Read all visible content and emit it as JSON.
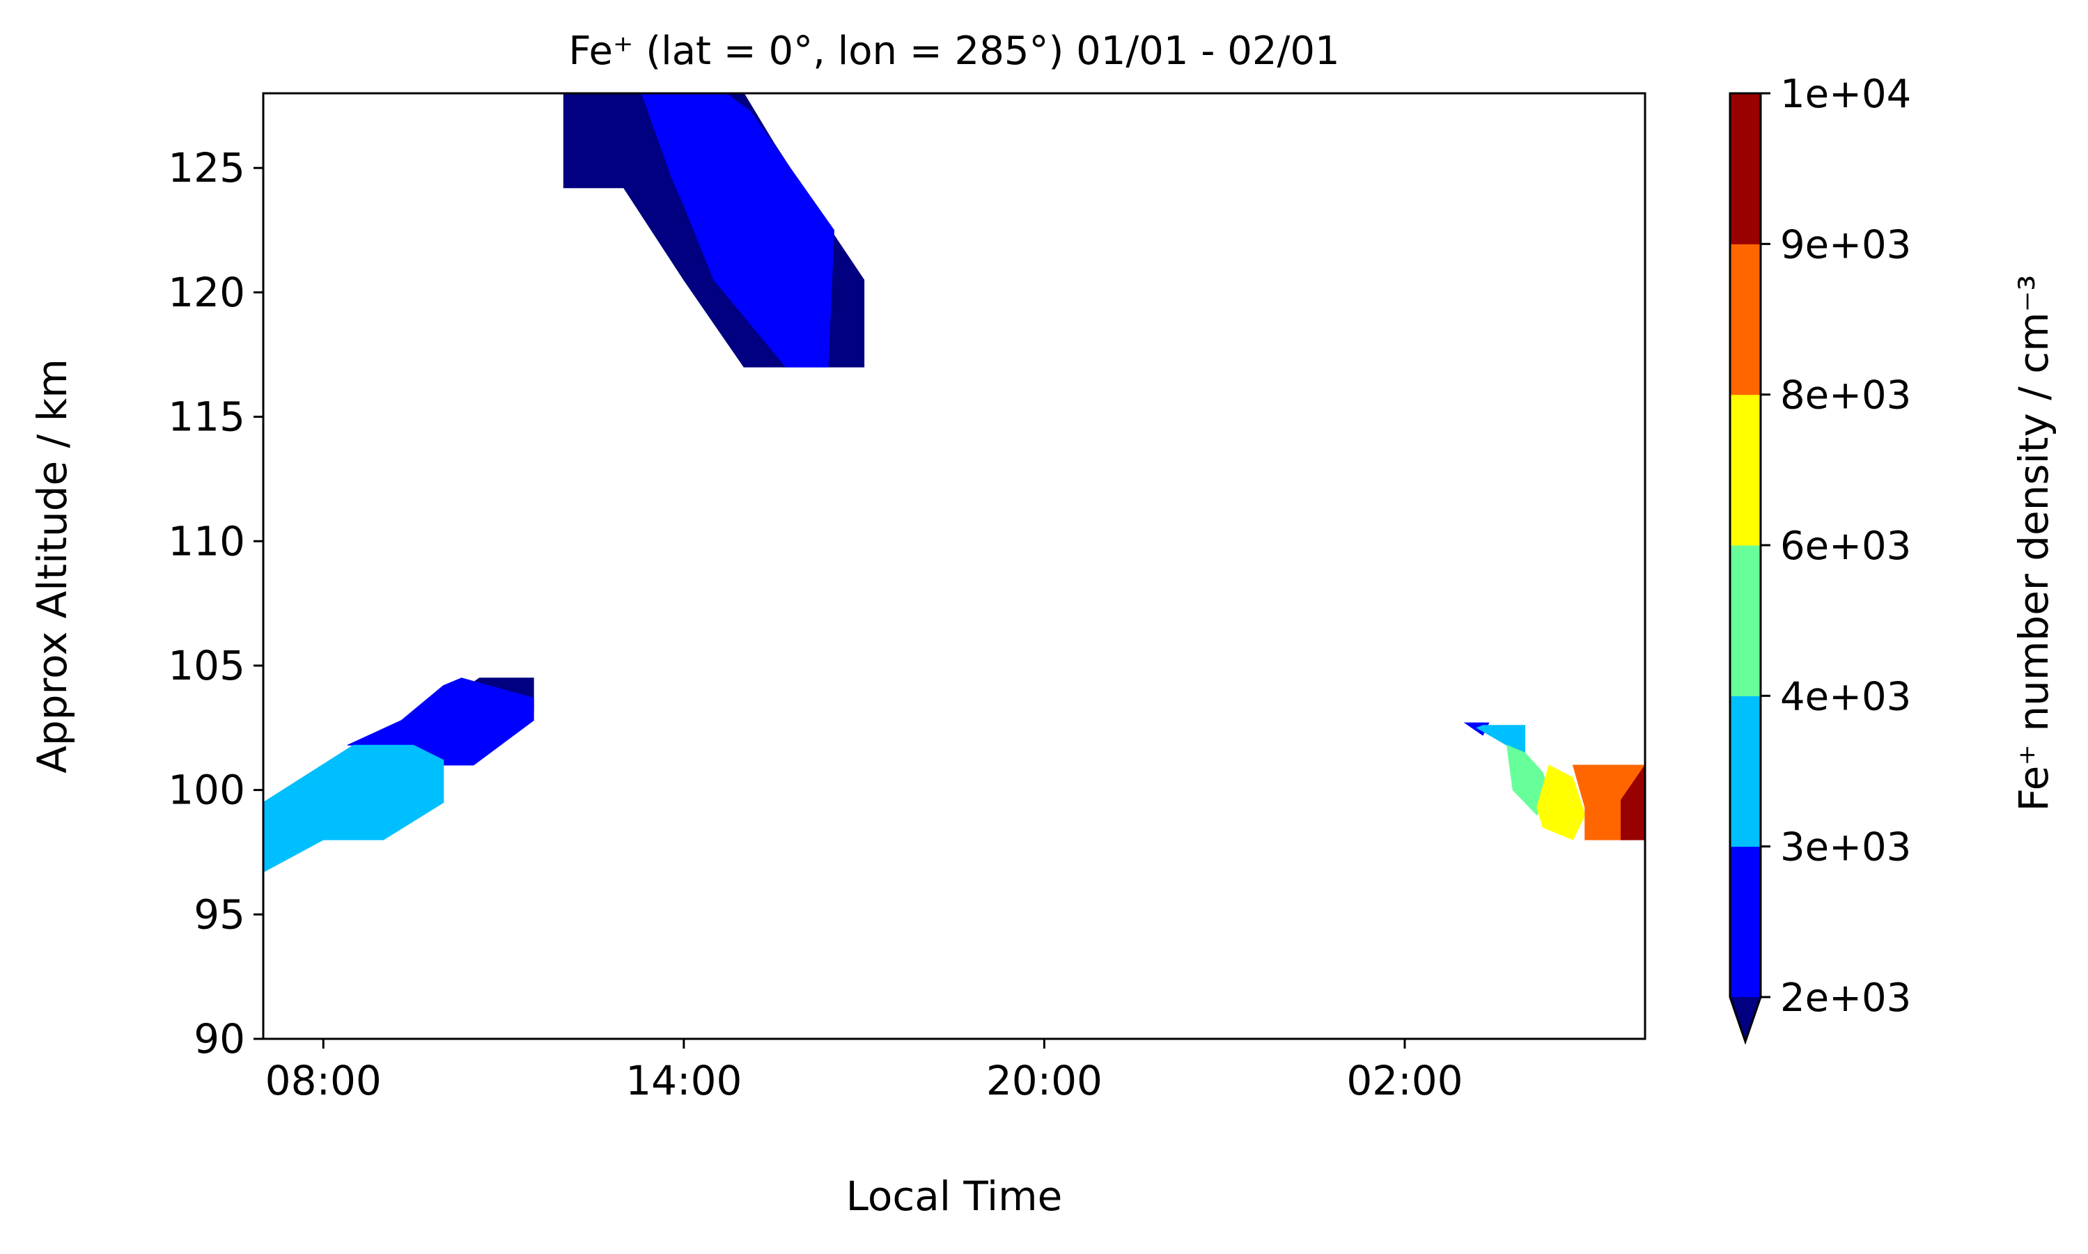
{
  "chart_data": {
    "type": "filled-contour",
    "title": "Fe⁺ (lat = 0°, lon = 285°) 01/01 - 02/01",
    "xlabel": "Local Time",
    "ylabel": "Approx Altitude / km",
    "x_ticks": [
      "08:00",
      "14:00",
      "20:00",
      "02:00"
    ],
    "x_tick_hours": [
      8,
      14,
      20,
      26
    ],
    "xlim_hours": [
      7,
      30
    ],
    "y_ticks": [
      90,
      95,
      100,
      105,
      110,
      115,
      120,
      125
    ],
    "ylim": [
      90,
      128
    ],
    "grid": false,
    "colorbar": {
      "label": "Fe⁺ number density / cm⁻³",
      "levels": [
        2000,
        3000,
        4000,
        6000,
        8000,
        9000,
        10000
      ],
      "tick_labels": [
        "2e+03",
        "3e+03",
        "4e+03",
        "6e+03",
        "8e+03",
        "9e+03",
        "1e+04"
      ],
      "colors": [
        "#0000FF",
        "#00BFFF",
        "#66FF99",
        "#FFFF00",
        "#FF6600",
        "#990000"
      ],
      "under_color": "#000080",
      "extend": "min"
    },
    "regions": [
      {
        "level": "under",
        "color": "#000080",
        "points": [
          [
            12,
            124.2
          ],
          [
            13,
            124.2
          ],
          [
            14,
            120.5
          ],
          [
            15,
            117
          ],
          [
            17,
            117
          ],
          [
            17,
            120.5
          ],
          [
            16.5,
            122.3
          ],
          [
            15.5,
            126
          ],
          [
            15,
            128
          ],
          [
            12,
            128
          ]
        ]
      },
      {
        "level": "2e+03-3e+03",
        "color": "#0000FF",
        "points": [
          [
            13,
            128
          ],
          [
            14.7,
            128
          ],
          [
            15.1,
            127.3
          ],
          [
            16.5,
            122.5
          ],
          [
            16.4,
            117
          ],
          [
            15.7,
            117
          ],
          [
            14.5,
            120.5
          ],
          [
            14,
            123.5
          ],
          [
            13.8,
            124.6
          ],
          [
            13.3,
            128
          ]
        ]
      },
      {
        "level": "under",
        "color": "#000080",
        "points": [
          [
            10,
            103.5
          ],
          [
            10.6,
            104.5
          ],
          [
            11.5,
            104.5
          ],
          [
            11.5,
            103.2
          ],
          [
            10.8,
            104
          ]
        ]
      },
      {
        "level": "2e+03-3e+03",
        "color": "#0000FF",
        "points": [
          [
            8.4,
            101.8
          ],
          [
            9.3,
            102.8
          ],
          [
            10,
            104.2
          ],
          [
            10.3,
            104.5
          ],
          [
            11.5,
            103.7
          ],
          [
            11.5,
            102.8
          ],
          [
            10.5,
            101
          ],
          [
            10,
            101
          ],
          [
            9,
            101.8
          ]
        ]
      },
      {
        "level": "3e+03-4e+03",
        "color": "#00BFFF",
        "points": [
          [
            7,
            96.7
          ],
          [
            8,
            98
          ],
          [
            9,
            98
          ],
          [
            10,
            99.5
          ],
          [
            10,
            101.2
          ],
          [
            9.5,
            101.8
          ],
          [
            8.5,
            101.8
          ],
          [
            7,
            99.5
          ]
        ]
      },
      {
        "level": "2e+03-3e+03",
        "color": "#0000FF",
        "points": [
          [
            27,
            102.7
          ],
          [
            27.4,
            102.7
          ],
          [
            27.3,
            102.2
          ]
        ]
      },
      {
        "level": "3e+03-4e+03",
        "color": "#00BFFF",
        "points": [
          [
            27.3,
            102.6
          ],
          [
            27.2,
            102.5
          ],
          [
            27.7,
            101.8
          ],
          [
            28,
            101.5
          ],
          [
            28,
            102.6
          ]
        ]
      },
      {
        "level": "4e+03-6e+03",
        "color": "#66FF99",
        "points": [
          [
            27.7,
            101.8
          ],
          [
            28,
            101.5
          ],
          [
            28.3,
            100.7
          ],
          [
            28.4,
            99.8
          ],
          [
            28.2,
            99
          ],
          [
            27.8,
            100
          ]
        ]
      },
      {
        "level": "6e+03-8e+03",
        "color": "#FFFF00",
        "points": [
          [
            28.4,
            101
          ],
          [
            28.8,
            100.5
          ],
          [
            29,
            99
          ],
          [
            28.8,
            98
          ],
          [
            28.3,
            98.5
          ],
          [
            28.2,
            99.3
          ]
        ]
      },
      {
        "level": "8e+03-9e+03",
        "color": "#FF6600",
        "points": [
          [
            28.8,
            101
          ],
          [
            30,
            101
          ],
          [
            30,
            100
          ],
          [
            29.6,
            99.6
          ],
          [
            29.7,
            98
          ],
          [
            29,
            98
          ],
          [
            29,
            99.3
          ]
        ]
      },
      {
        "level": "9e+03-1e+04",
        "color": "#990000",
        "points": [
          [
            29.6,
            99.6
          ],
          [
            30,
            101
          ],
          [
            30,
            98
          ],
          [
            29.6,
            98
          ]
        ]
      }
    ]
  }
}
